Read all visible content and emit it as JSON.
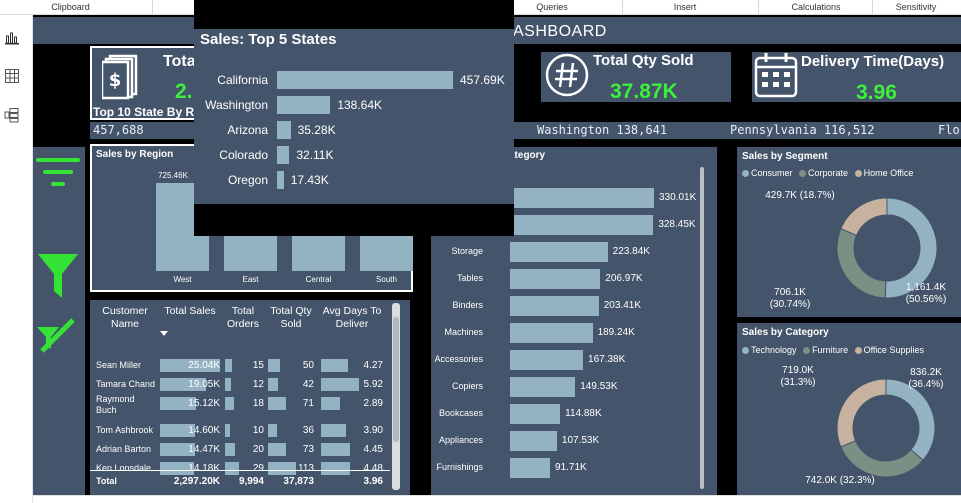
{
  "ribbon": {
    "groups": [
      "Clipboard",
      "Queries",
      "Insert",
      "Calculations",
      "Sensitivity"
    ]
  },
  "left_pane": {
    "icons": [
      "report-view-icon",
      "table-view-icon",
      "model-view-icon"
    ]
  },
  "dashboard": {
    "title": "ASHBOARD",
    "kpis": {
      "total_sales_title": "Total",
      "total_sales_value": "2.",
      "qty_title": "Total Qty Sold",
      "qty_value": "37.87K",
      "delivery_title": "Delivery Time(Days)",
      "delivery_value": "3.96"
    },
    "top10_label": "Top 10 State By R",
    "ticker": [
      "457,688",
      "Washington 138,641",
      "Pennsylvania 116,512",
      "Flo"
    ]
  },
  "region_chart": {
    "title": "Sales by Region",
    "categories": [
      "West",
      "East",
      "Central",
      "South"
    ],
    "value_label": "725.46K"
  },
  "subcat_chart": {
    "title": "ategory",
    "categories": [
      "",
      "",
      "Storage",
      "Tables",
      "Binders",
      "Machines",
      "Accessories",
      "Copiers",
      "Bookcases",
      "Appliances",
      "Furnishings"
    ],
    "values": [
      330.01,
      328.45,
      223.84,
      206.97,
      203.41,
      189.24,
      167.38,
      149.53,
      114.88,
      107.53,
      91.71
    ],
    "labels": [
      "330.01K",
      "328.45K",
      "223.84K",
      "206.97K",
      "203.41K",
      "189.24K",
      "167.38K",
      "149.53K",
      "114.88K",
      "107.53K",
      "91.71K"
    ]
  },
  "segment_chart": {
    "title": "Sales by Segment",
    "legend": [
      "Consumer",
      "Corporate",
      "Home Office"
    ],
    "colors": [
      "#93b3c3",
      "#7c8f85",
      "#c6b29e"
    ],
    "values": [
      50.56,
      30.74,
      18.7
    ],
    "labels": [
      "1,161.4K\n(50.56%)",
      "706.1K\n(30.74%)",
      "429.7K (18.7%)"
    ]
  },
  "category_chart": {
    "title": "Sales by Category",
    "legend": [
      "Technology",
      "Furniture",
      "Office Supplies"
    ],
    "colors": [
      "#93b3c3",
      "#7c8f85",
      "#c6b29e"
    ],
    "values": [
      36.4,
      32.3,
      31.3
    ],
    "labels": [
      "836.2K\n(36.4%)",
      "742.0K (32.3%)",
      "719.0K\n(31.3%)"
    ]
  },
  "customer_table": {
    "headers": [
      "Customer\nName",
      "Total Sales",
      "Total\nOrders",
      "Total Qty\nSold",
      "Avg Days To\nDeliver"
    ],
    "rows": [
      {
        "name": "Sean Miller",
        "sales": "25.04K",
        "orders": "15",
        "qty": "50",
        "days": "4.27",
        "sales_v": 25.04,
        "orders_v": 15,
        "qty_v": 50,
        "days_v": 4.27
      },
      {
        "name": "Tamara Chand",
        "sales": "19.05K",
        "orders": "12",
        "qty": "42",
        "days": "5.92",
        "sales_v": 19.05,
        "orders_v": 12,
        "qty_v": 42,
        "days_v": 5.92
      },
      {
        "name": "Raymond Buch",
        "sales": "15.12K",
        "orders": "18",
        "qty": "71",
        "days": "2.89",
        "sales_v": 15.12,
        "orders_v": 18,
        "qty_v": 71,
        "days_v": 2.89
      },
      {
        "name": "Tom Ashbrook",
        "sales": "14.60K",
        "orders": "10",
        "qty": "36",
        "days": "3.90",
        "sales_v": 14.6,
        "orders_v": 10,
        "qty_v": 36,
        "days_v": 3.9
      },
      {
        "name": "Adrian Barton",
        "sales": "14.47K",
        "orders": "20",
        "qty": "73",
        "days": "4.45",
        "sales_v": 14.47,
        "orders_v": 20,
        "qty_v": 73,
        "days_v": 4.45
      },
      {
        "name": "Ken Lonsdale",
        "sales": "14.18K",
        "orders": "29",
        "qty": "113",
        "days": "4.48",
        "sales_v": 14.18,
        "orders_v": 29,
        "qty_v": 113,
        "days_v": 4.48
      }
    ],
    "total_label": "Total",
    "total_sales": "2,297.20K",
    "total_orders": "9,994",
    "total_qty": "37,873",
    "total_days": "3.96"
  },
  "tooltip": {
    "title": "Sales: Top 5 States",
    "categories": [
      "California",
      "Washington",
      "Arizona",
      "Colorado",
      "Oregon"
    ],
    "values": [
      457.69,
      138.64,
      35.28,
      32.11,
      17.43
    ],
    "labels": [
      "457.69K",
      "138.64K",
      "35.28K",
      "32.11K",
      "17.43K"
    ]
  },
  "colors": {
    "card": "#44546a",
    "bar": "#93b3c3",
    "kpi_green": "#3cf03c",
    "accent_green": "#35e335"
  }
}
